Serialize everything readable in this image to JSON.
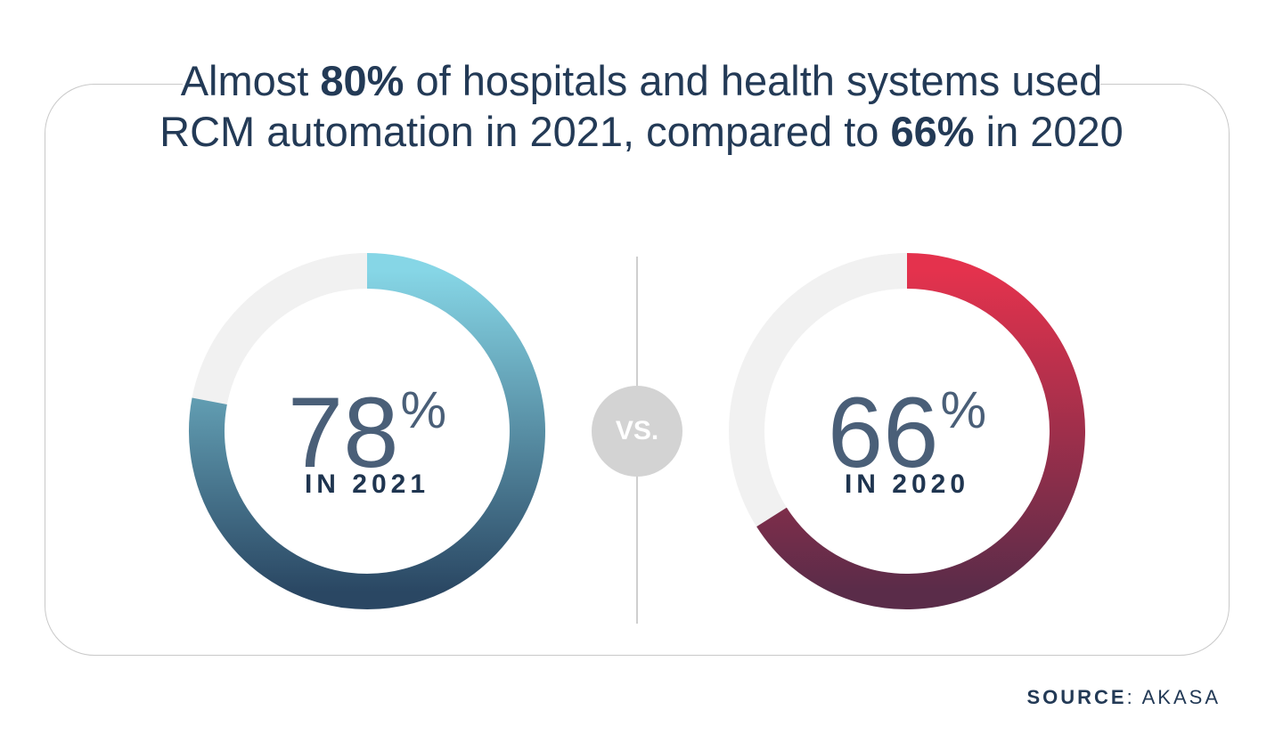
{
  "headline": {
    "t1": "Almost ",
    "b1": "80%",
    "t2": " of hospitals and health systems used RCM automation in 2021, compared to ",
    "b2": "66%",
    "t3": " in 2020"
  },
  "vs_label": "VS.",
  "chart_data": [
    {
      "type": "pie",
      "variant": "donut",
      "value": 78,
      "value_label": "78",
      "unit": "%",
      "label": "IN 2021",
      "colors": {
        "gradient_start": "#86d6e6",
        "gradient_end": "#2a4763",
        "track": "#f1f1f1"
      }
    },
    {
      "type": "pie",
      "variant": "donut",
      "value": 66,
      "value_label": "66",
      "unit": "%",
      "label": "IN 2020",
      "colors": {
        "gradient_start": "#e4324d",
        "gradient_end": "#5a2c49",
        "track": "#f1f1f1"
      }
    }
  ],
  "source": {
    "label": "SOURCE",
    "value": ": AKASA"
  }
}
